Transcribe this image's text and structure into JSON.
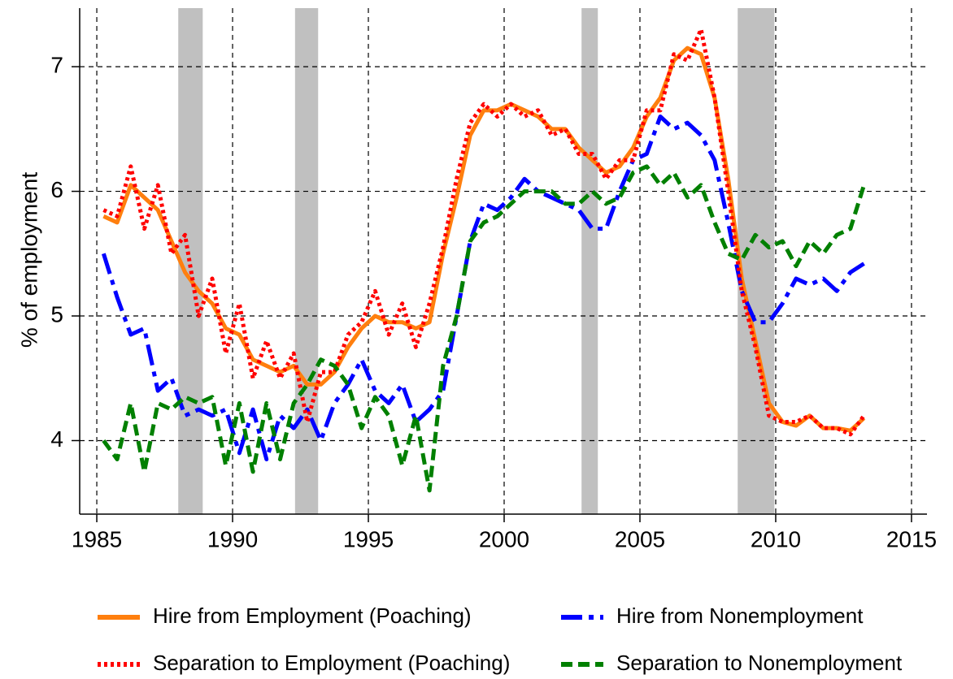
{
  "chart_data": {
    "type": "line",
    "y_label": "% of employment",
    "x": [
      1985.25,
      1985.75,
      1986.25,
      1986.75,
      1987.25,
      1987.75,
      1988.25,
      1988.75,
      1989.25,
      1989.75,
      1990.25,
      1990.75,
      1991.25,
      1991.75,
      1992.25,
      1992.75,
      1993.25,
      1993.75,
      1994.25,
      1994.75,
      1995.25,
      1995.75,
      1996.25,
      1996.75,
      1997.25,
      1997.75,
      1998.25,
      1998.75,
      1999.25,
      1999.75,
      2000.25,
      2000.75,
      2001.25,
      2001.75,
      2002.25,
      2002.75,
      2003.25,
      2003.75,
      2004.25,
      2004.75,
      2005.25,
      2005.75,
      2006.25,
      2006.75,
      2007.25,
      2007.75,
      2008.25,
      2008.75,
      2009.25,
      2009.75,
      2010.25,
      2010.75,
      2011.25,
      2011.75,
      2012.25,
      2012.75,
      2013.25
    ],
    "series": [
      {
        "name": "Hire from Employment (Poaching)",
        "color": "#ff7f0e",
        "line_style": "solid",
        "values": [
          5.8,
          5.75,
          6.05,
          5.95,
          5.85,
          5.6,
          5.35,
          5.2,
          5.1,
          4.9,
          4.85,
          4.65,
          4.6,
          4.55,
          4.6,
          4.45,
          4.45,
          4.55,
          4.75,
          4.9,
          5.0,
          4.95,
          4.95,
          4.9,
          4.95,
          5.5,
          5.95,
          6.45,
          6.65,
          6.65,
          6.7,
          6.65,
          6.6,
          6.5,
          6.5,
          6.35,
          6.25,
          6.15,
          6.2,
          6.35,
          6.6,
          6.75,
          7.05,
          7.15,
          7.1,
          6.75,
          6.1,
          5.3,
          4.8,
          4.3,
          4.15,
          4.12,
          4.2,
          4.1,
          4.1,
          4.08,
          4.18
        ]
      },
      {
        "name": "Hire from Nonemployment",
        "color": "#0000ff",
        "line_style": "dashdot",
        "values": [
          5.5,
          5.15,
          4.85,
          4.9,
          4.4,
          4.5,
          4.2,
          4.25,
          4.2,
          4.25,
          3.9,
          4.25,
          3.85,
          4.2,
          4.1,
          4.25,
          4.0,
          4.3,
          4.45,
          4.65,
          4.4,
          4.3,
          4.45,
          4.15,
          4.25,
          4.4,
          5.0,
          5.6,
          5.9,
          5.85,
          5.95,
          6.1,
          6.0,
          5.95,
          5.9,
          5.85,
          5.7,
          5.7,
          6.0,
          6.25,
          6.3,
          6.6,
          6.5,
          6.55,
          6.45,
          6.25,
          5.75,
          5.2,
          4.95,
          4.95,
          5.1,
          5.3,
          5.25,
          5.3,
          5.2,
          5.35,
          5.42
        ]
      },
      {
        "name": "Separation to Employment (Poaching)",
        "color": "#ff0000",
        "line_style": "dotted",
        "values": [
          5.85,
          5.8,
          6.2,
          5.7,
          6.05,
          5.5,
          5.65,
          5.0,
          5.3,
          4.7,
          5.1,
          4.5,
          4.8,
          4.5,
          4.7,
          4.15,
          4.55,
          4.55,
          4.85,
          4.95,
          5.2,
          4.85,
          5.1,
          4.75,
          5.1,
          5.55,
          6.1,
          6.55,
          6.7,
          6.6,
          6.7,
          6.6,
          6.65,
          6.45,
          6.5,
          6.3,
          6.3,
          6.1,
          6.25,
          6.25,
          6.65,
          6.65,
          7.1,
          7.05,
          7.3,
          6.75,
          6.0,
          5.2,
          4.75,
          4.2,
          4.15,
          4.15,
          4.2,
          4.1,
          4.1,
          4.05,
          4.2
        ]
      },
      {
        "name": "Separation to Nonemployment",
        "color": "#008000",
        "line_style": "dashed",
        "values": [
          4.0,
          3.85,
          4.3,
          3.75,
          4.3,
          4.25,
          4.35,
          4.3,
          4.35,
          3.8,
          4.3,
          3.75,
          4.3,
          3.85,
          4.3,
          4.45,
          4.65,
          4.6,
          4.45,
          4.1,
          4.35,
          4.2,
          3.8,
          4.2,
          3.6,
          4.6,
          5.0,
          5.6,
          5.75,
          5.8,
          5.9,
          6.0,
          6.0,
          6.0,
          5.9,
          5.9,
          6.0,
          5.9,
          5.95,
          6.15,
          6.2,
          6.05,
          6.15,
          5.95,
          6.05,
          5.75,
          5.5,
          5.45,
          5.65,
          5.55,
          5.6,
          5.4,
          5.6,
          5.5,
          5.65,
          5.7,
          6.05
        ]
      }
    ],
    "shaded_periods": [
      [
        1988.0,
        1988.9
      ],
      [
        1992.3,
        1993.15
      ],
      [
        2002.85,
        2003.45
      ],
      [
        2008.6,
        2009.95
      ]
    ],
    "shade_color": "#c0c0c0",
    "xlim": [
      1984.37,
      2015.57
    ],
    "xticks": [
      1985,
      1990,
      1995,
      2000,
      2005,
      2010,
      2015
    ],
    "ylim": [
      3.41,
      7.47
    ],
    "yticks": [
      4,
      5,
      6,
      7
    ],
    "grid": true
  }
}
